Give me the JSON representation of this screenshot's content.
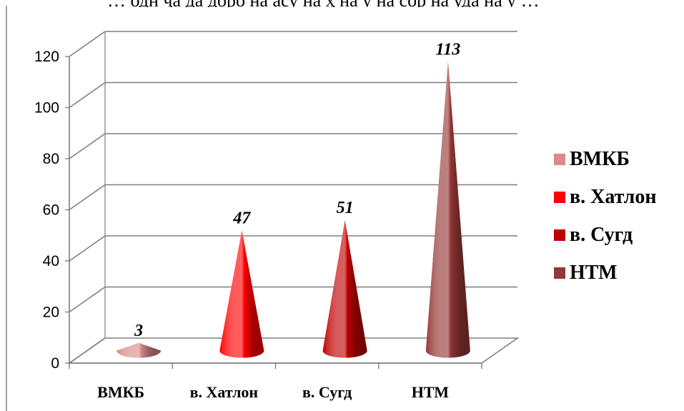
{
  "header_text": "… одн ҷа да доро на асу на ҳ на у на сор на уда на у …",
  "chart_data": {
    "type": "bar",
    "style": "3d-cone",
    "categories": [
      "ВМКБ",
      "в. Хатлон",
      "в. Сугд",
      "НТМ"
    ],
    "series": [
      {
        "name": "ВМКБ",
        "values": [
          3,
          null,
          null,
          null
        ],
        "color": "#d98a8a"
      },
      {
        "name": "в. Хатлон",
        "values": [
          null,
          47,
          null,
          null
        ],
        "color": "#ff0000"
      },
      {
        "name": "в. Сугд",
        "values": [
          null,
          null,
          51,
          null
        ],
        "color": "#c00000"
      },
      {
        "name": "НТМ",
        "values": [
          null,
          null,
          null,
          113
        ],
        "color": "#953735"
      }
    ],
    "values": [
      3,
      47,
      51,
      113
    ],
    "data_labels": [
      "3",
      "47",
      "51",
      "113"
    ],
    "yticks": [
      0,
      20,
      40,
      60,
      80,
      100,
      120
    ],
    "ylim": [
      0,
      120
    ],
    "grid": true,
    "legend": "right",
    "title": "",
    "xlabel": "",
    "ylabel": ""
  }
}
